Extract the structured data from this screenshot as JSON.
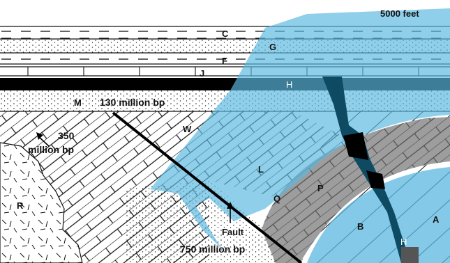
{
  "scale_label": "5000 feet",
  "layers": {
    "c": "C",
    "g": "G",
    "f": "F",
    "j": "J",
    "h": "H",
    "m": "M",
    "w": "W",
    "l": "L",
    "q": "Q",
    "p": "P",
    "b": "B",
    "a": "A",
    "r": "R",
    "h_lower": "H"
  },
  "ages": {
    "age_130": "130 million bp",
    "age_350_line1": "350",
    "age_350_line2": "million bp",
    "age_750": "750 million bp"
  },
  "fault_label": "Fault",
  "colors": {
    "water_blue": "#5bb8e0",
    "dark_dike": "#0f4a63",
    "gray_band": "#9d9d9d",
    "black_layer": "#000000"
  }
}
